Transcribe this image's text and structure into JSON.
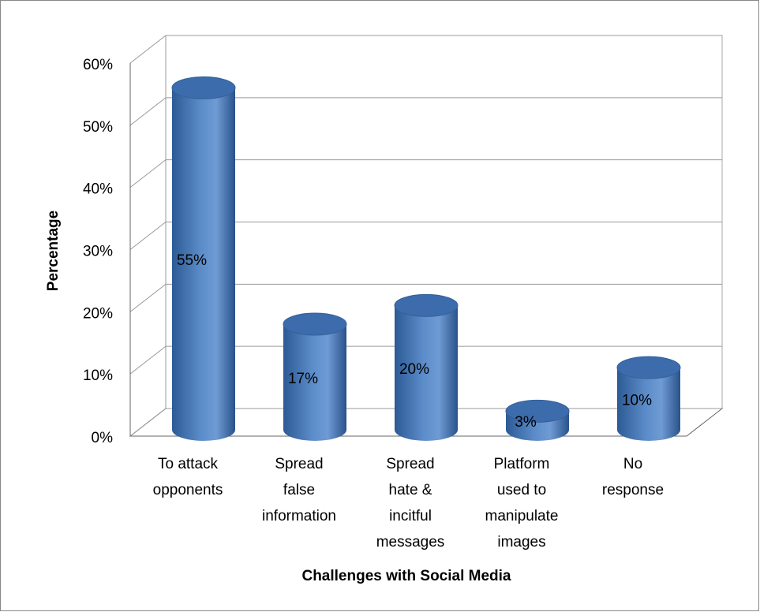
{
  "chart_data": {
    "type": "bar3d",
    "x_label": "Challenges with Social Media",
    "y_label": "Percentage",
    "categories": [
      [
        "To attack",
        "opponents"
      ],
      [
        "Spread",
        "false",
        "information"
      ],
      [
        "Spread",
        "hate &",
        "incitful",
        "messages"
      ],
      [
        "Platform",
        "used to",
        "manipulate",
        "images"
      ],
      [
        "No",
        "response"
      ]
    ],
    "values": [
      55,
      17,
      20,
      3,
      10
    ],
    "value_labels": [
      "55%",
      "17%",
      "20%",
      "3%",
      "10%"
    ],
    "color": "#4f81bd",
    "ylim": [
      0,
      60
    ],
    "yticks": [
      {
        "value": 0,
        "label": "0%"
      },
      {
        "value": 10,
        "label": "10%"
      },
      {
        "value": 20,
        "label": "20%"
      },
      {
        "value": 30,
        "label": "30%"
      },
      {
        "value": 40,
        "label": "40%"
      },
      {
        "value": 50,
        "label": "50%"
      },
      {
        "value": 60,
        "label": "60%"
      }
    ],
    "grid": true
  }
}
